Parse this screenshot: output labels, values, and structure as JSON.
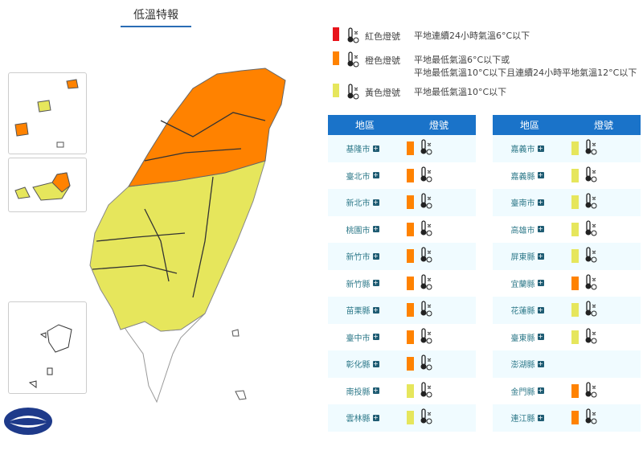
{
  "title": "低溫特報",
  "colors": {
    "red": "#e8141b",
    "orange": "#ff8200",
    "yellow": "#e6e65c",
    "header": "#1a73c9"
  },
  "legend": [
    {
      "level": "red",
      "name": "紅色燈號",
      "desc": [
        "平地連續24小時氣溫6°C以下"
      ]
    },
    {
      "level": "orange",
      "name": "橙色燈號",
      "desc": [
        "平地最低氣溫6°C以下或",
        "平地最低氣溫10°C以下且連續24小時平地氣溫12°C以下"
      ]
    },
    {
      "level": "yellow",
      "name": "黃色燈號",
      "desc": [
        "平地最低氣溫10°C以下"
      ]
    }
  ],
  "table_headers": {
    "region": "地區",
    "signal": "燈號"
  },
  "left_table": [
    {
      "region": "基隆市",
      "level": "orange"
    },
    {
      "region": "臺北市",
      "level": "orange"
    },
    {
      "region": "新北市",
      "level": "orange"
    },
    {
      "region": "桃園市",
      "level": "orange"
    },
    {
      "region": "新竹市",
      "level": "orange"
    },
    {
      "region": "新竹縣",
      "level": "orange"
    },
    {
      "region": "苗栗縣",
      "level": "orange"
    },
    {
      "region": "臺中市",
      "level": "orange"
    },
    {
      "region": "彰化縣",
      "level": "orange"
    },
    {
      "region": "南投縣",
      "level": "yellow"
    },
    {
      "region": "雲林縣",
      "level": "yellow"
    }
  ],
  "right_table": [
    {
      "region": "嘉義市",
      "level": "yellow"
    },
    {
      "region": "嘉義縣",
      "level": "yellow"
    },
    {
      "region": "臺南市",
      "level": "yellow"
    },
    {
      "region": "高雄市",
      "level": "yellow"
    },
    {
      "region": "屏東縣",
      "level": "yellow"
    },
    {
      "region": "宜蘭縣",
      "level": "orange"
    },
    {
      "region": "花蓮縣",
      "level": "yellow"
    },
    {
      "region": "臺東縣",
      "level": "yellow"
    },
    {
      "region": "澎湖縣",
      "level": null
    },
    {
      "region": "金門縣",
      "level": "orange"
    },
    {
      "region": "連江縣",
      "level": "orange"
    }
  ]
}
